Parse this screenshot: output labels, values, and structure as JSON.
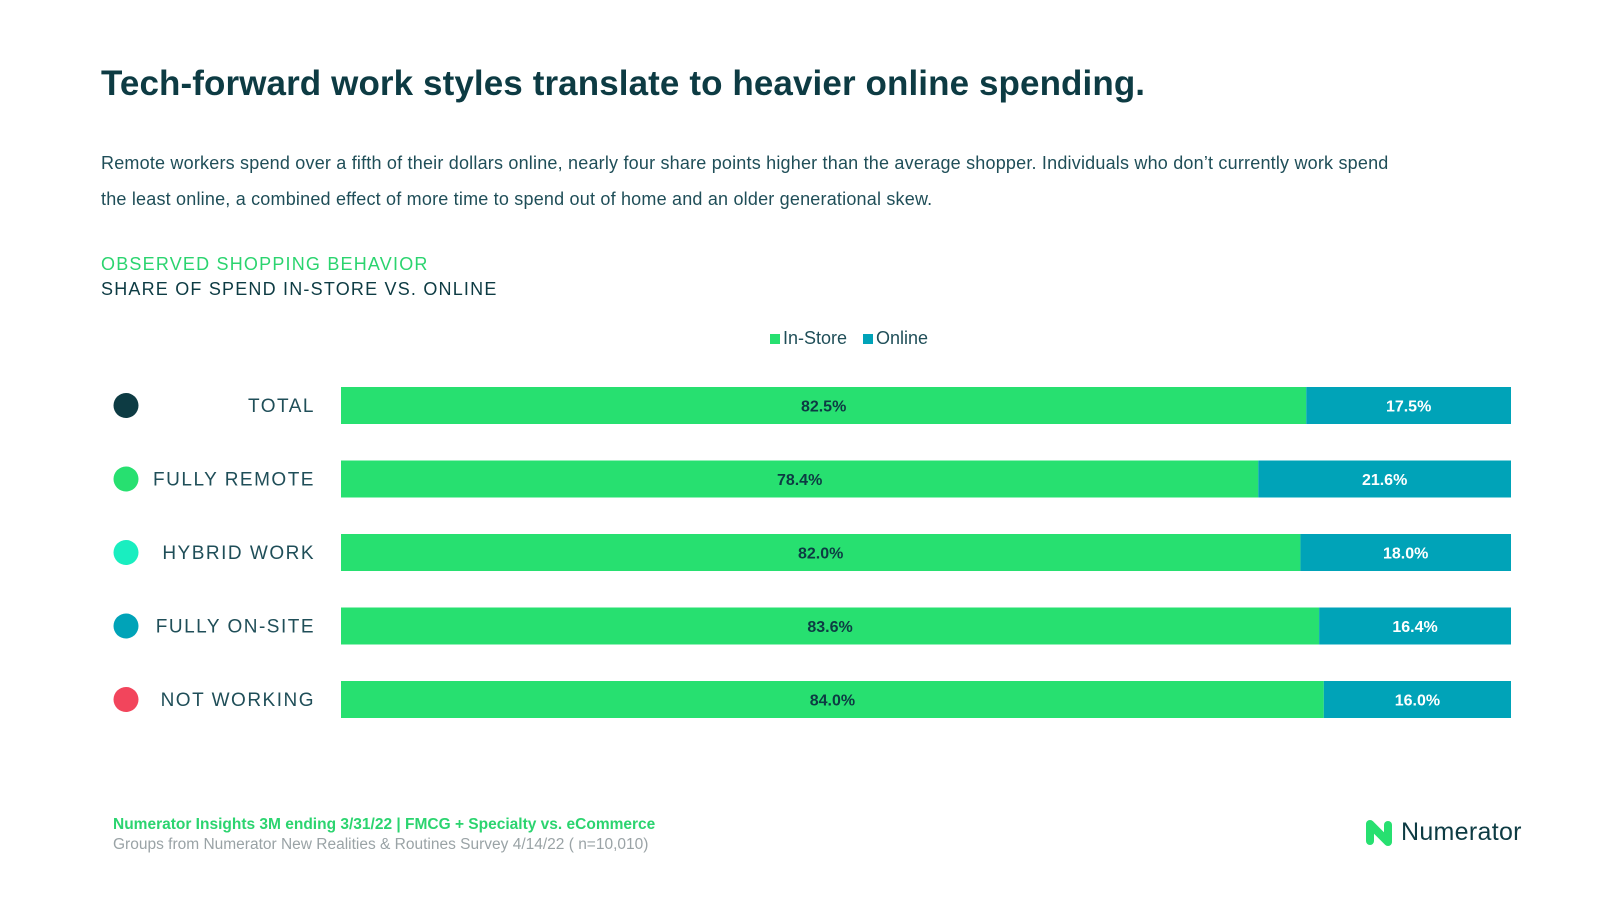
{
  "title": "Tech-forward work styles translate to heavier online spending.",
  "subtitle": "Remote workers spend over a fifth of their dollars online, nearly four share points higher than the average shopper. Individuals who don’t currently work spend the least online, a combined effect of more time to spend out of home and an older generational skew.",
  "kicker": "OBSERVED SHOPPING BEHAVIOR",
  "chart_heading": "SHARE OF SPEND IN-STORE VS. ONLINE",
  "colors": {
    "in_store": "#27e070",
    "online": "#00a3b8",
    "dark_text": "#0d3b43"
  },
  "chart_data": {
    "type": "bar",
    "orientation": "horizontal",
    "stacked": true,
    "percent_stacked": true,
    "title": "SHARE OF SPEND IN-STORE VS. ONLINE",
    "categories": [
      "TOTAL",
      "FULLY REMOTE",
      "HYBRID WORK",
      "FULLY ON-SITE",
      "NOT WORKING"
    ],
    "category_dot_colors": [
      "#0d3b43",
      "#27e070",
      "#19eec0",
      "#00a3b8",
      "#f2455c"
    ],
    "series": [
      {
        "name": "In-Store",
        "color": "#27e070",
        "values": [
          82.5,
          78.4,
          82.0,
          83.6,
          84.0
        ],
        "labels": [
          "82.5%",
          "78.4%",
          "82.0%",
          "83.6%",
          "84.0%"
        ]
      },
      {
        "name": "Online",
        "color": "#00a3b8",
        "values": [
          17.5,
          21.6,
          18.0,
          16.4,
          16.0
        ],
        "labels": [
          "17.5%",
          "21.6%",
          "18.0%",
          "16.4%",
          "16.0%"
        ]
      }
    ],
    "xlim": [
      0,
      100
    ],
    "legend_position": "top-center",
    "grid": false
  },
  "footer": {
    "source": "Numerator Insights 3M ending 3/31/22 | FMCG + Specialty vs. eCommerce",
    "note": "Groups from Numerator New Realities & Routines Survey 4/14/22 ( n=10,010)"
  },
  "logo": {
    "text": "Numerator",
    "icon": "numerator-logo-icon"
  }
}
